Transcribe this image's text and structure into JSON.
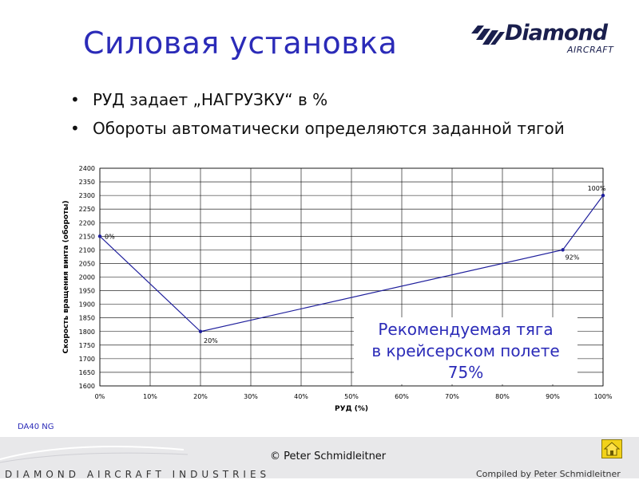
{
  "header": {
    "title": "Силовая установка",
    "logo_text": "Diamond",
    "logo_subtext": "AIRCRAFT"
  },
  "bullets": [
    {
      "text": "РУД задает „НАГРУЗКУ“ в %"
    },
    {
      "text": "Обороты автоматически определяются заданной тягой"
    }
  ],
  "callout": {
    "lines": [
      "Рекомендуемая тяга",
      "в крейсерском полете",
      "75%"
    ]
  },
  "footer": {
    "model": "DA40 NG",
    "copyright": "© Peter Schmidleitner",
    "brand": "DIAMOND AIRCRAFT INDUSTRIES",
    "compiled": "Compiled by Peter Schmidleitner"
  },
  "colors": {
    "title": "#2b2bb8",
    "line": "#1f1f9c",
    "grid": "#000000",
    "home_button": "#f2d21a"
  },
  "icons": {
    "home": "home-icon",
    "bullet": "bullet-dot-icon"
  },
  "chart_data": {
    "type": "line",
    "xlabel": "РУД (%)",
    "ylabel": "Скорость вращения винта (обороты)",
    "x_tick_labels": [
      "0%",
      "10%",
      "20%",
      "30%",
      "40%",
      "50%",
      "60%",
      "70%",
      "80%",
      "90%",
      "100%"
    ],
    "xlim": [
      0,
      100
    ],
    "ylim": [
      1600,
      2400
    ],
    "ystep": 50,
    "grid": true,
    "series": [
      {
        "x": [
          0,
          20,
          92,
          100
        ],
        "y": [
          2150,
          1800,
          2100,
          2300
        ],
        "point_labels": [
          "0%",
          "20%",
          "92%",
          "100%"
        ]
      }
    ]
  }
}
